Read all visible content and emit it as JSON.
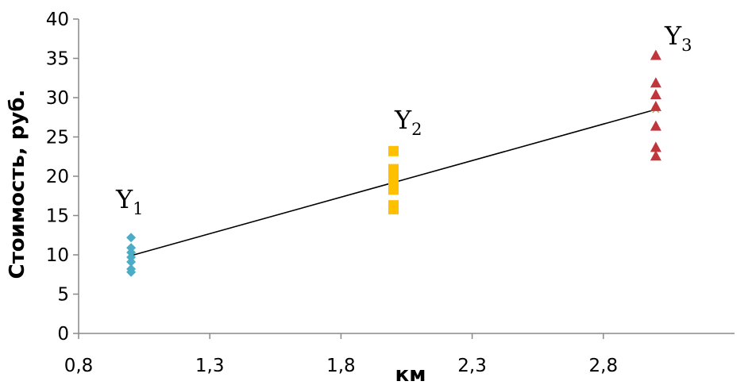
{
  "chart_data": {
    "type": "scatter",
    "title": "",
    "xlabel": "км",
    "ylabel": "Стоимость, руб.",
    "xlim": [
      0.8,
      3.3
    ],
    "ylim": [
      0,
      40
    ],
    "x_ticks": [
      0.8,
      1.3,
      1.8,
      2.3,
      2.8
    ],
    "x_tick_labels": [
      "0,8",
      "1,3",
      "1,8",
      "2,3",
      "2,8"
    ],
    "y_ticks": [
      0,
      5,
      10,
      15,
      20,
      25,
      30,
      35,
      40
    ],
    "y_tick_labels": [
      "0",
      "5",
      "10",
      "15",
      "20",
      "25",
      "30",
      "35",
      "40"
    ],
    "grid": false,
    "series": [
      {
        "label_main": "Y",
        "label_sub": "1",
        "marker": "diamond",
        "color": "#4BACC6",
        "points": [
          [
            1,
            12.2
          ],
          [
            1,
            10.9
          ],
          [
            1,
            10.3
          ],
          [
            1,
            9.7
          ],
          [
            1,
            9.1
          ],
          [
            1,
            8.2
          ],
          [
            1,
            7.8
          ]
        ]
      },
      {
        "label_main": "Y",
        "label_sub": "2",
        "marker": "square",
        "color": "#FFC000",
        "points": [
          [
            2,
            23.2
          ],
          [
            2,
            20.9
          ],
          [
            2,
            20.4
          ],
          [
            2,
            19.4
          ],
          [
            2,
            18.3
          ],
          [
            2,
            16.3
          ],
          [
            2,
            15.8
          ]
        ]
      },
      {
        "label_main": "Y",
        "label_sub": "3",
        "marker": "triangle",
        "color": "#C0363D",
        "points": [
          [
            3,
            35.4
          ],
          [
            3,
            31.9
          ],
          [
            3,
            30.4
          ],
          [
            3,
            28.9
          ],
          [
            3,
            26.4
          ],
          [
            3,
            23.7
          ],
          [
            3,
            22.6
          ]
        ]
      }
    ],
    "trendline": {
      "color": "#000000",
      "points": [
        [
          1,
          9.9
        ],
        [
          2,
          19.2
        ],
        [
          3,
          28.5
        ]
      ]
    }
  }
}
